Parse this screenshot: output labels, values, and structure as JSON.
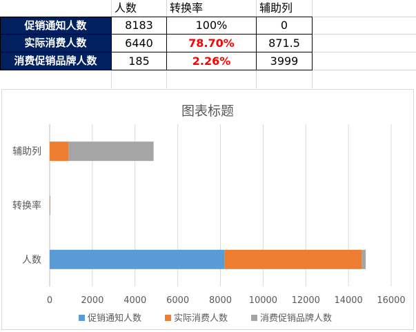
{
  "table": {
    "headers": [
      "人数",
      "转换率",
      "辅助列"
    ],
    "rows": [
      {
        "label": "促销通知人数",
        "people": "8183",
        "rate": "100%",
        "aux": "0"
      },
      {
        "label": "实际消费人数",
        "people": "6440",
        "rate": "78.70%",
        "aux": "871.5"
      },
      {
        "label": "消费促销品牌人数",
        "people": "185",
        "rate": "2.26%",
        "aux": "3999"
      }
    ]
  },
  "colors": {
    "header_fill": "#002060",
    "rate_highlight": "#ff0000",
    "series1": "#5b9bd5",
    "series2": "#ed7d31",
    "series3": "#a5a5a5"
  },
  "chart_data": {
    "type": "bar",
    "orientation": "horizontal",
    "stacked": true,
    "title": "图表标题",
    "categories": [
      "人数",
      "转换率",
      "辅助列"
    ],
    "series": [
      {
        "name": "促销通知人数",
        "values": [
          8183,
          1,
          0
        ]
      },
      {
        "name": "实际消费人数",
        "values": [
          6440,
          0.787,
          871.5
        ]
      },
      {
        "name": "消费促销品牌人数",
        "values": [
          185,
          0.0226,
          3999
        ]
      }
    ],
    "xlim": [
      0,
      16000
    ],
    "xticks": [
      "0",
      "2000",
      "4000",
      "6000",
      "8000",
      "10000",
      "12000",
      "14000",
      "16000"
    ],
    "grid": "vertical",
    "legend": "bottom"
  }
}
